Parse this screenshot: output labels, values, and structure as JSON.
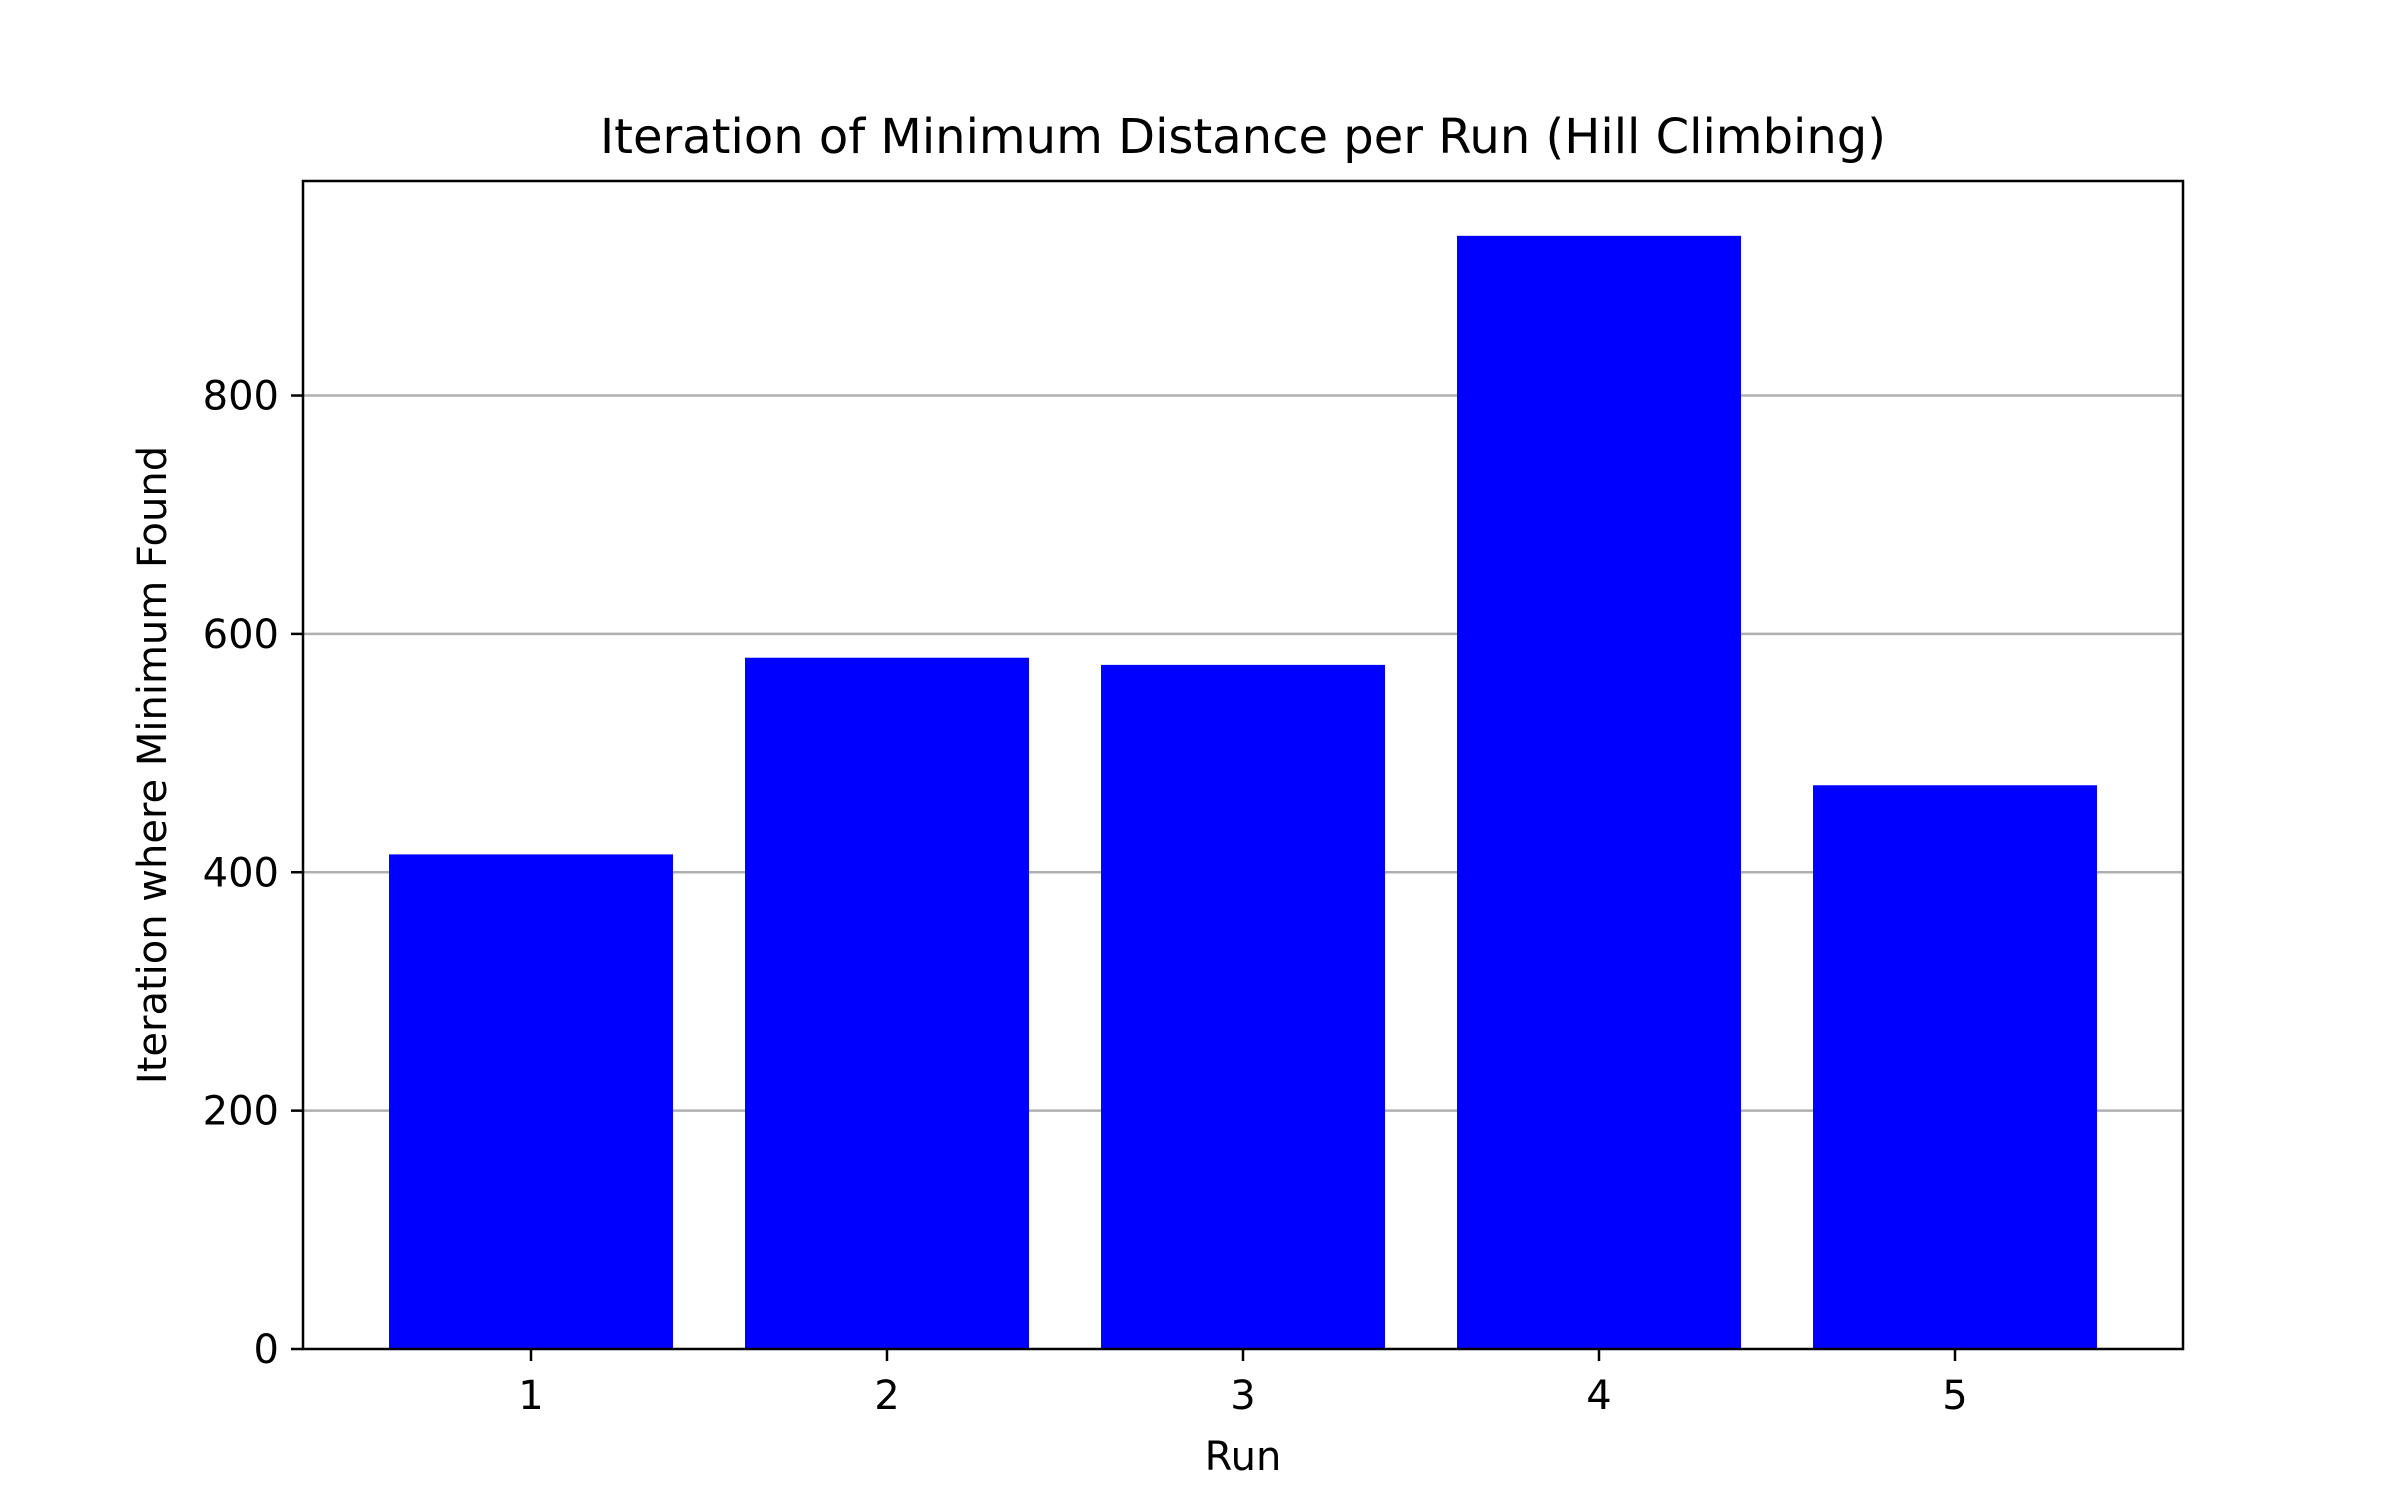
{
  "chart_data": {
    "type": "bar",
    "title": "Iteration of Minimum Distance per Run (Hill Climbing)",
    "xlabel": "Run",
    "ylabel": "Iteration where Minimum Found",
    "categories": [
      "1",
      "2",
      "3",
      "4",
      "5"
    ],
    "values": [
      415,
      580,
      574,
      934,
      473
    ],
    "ylim": [
      0,
      980
    ],
    "yticks": [
      0,
      200,
      400,
      600,
      800
    ],
    "grid": "y-major",
    "bar_color": "#0000ff",
    "grid_color": "#b0b0b0"
  }
}
